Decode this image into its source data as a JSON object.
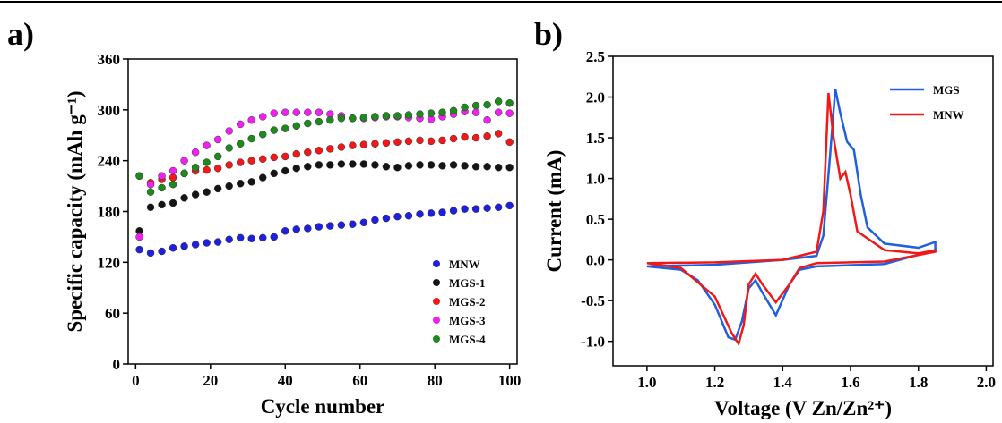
{
  "chart_data": [
    {
      "type": "scatter",
      "panel_label": "a)",
      "xlabel": "Cycle number",
      "ylabel": "Specific capacity (mAh g⁻¹)",
      "x": [
        1,
        4,
        7,
        10,
        13,
        16,
        19,
        22,
        25,
        28,
        31,
        34,
        37,
        40,
        43,
        46,
        49,
        52,
        55,
        58,
        61,
        64,
        67,
        70,
        73,
        76,
        79,
        82,
        85,
        88,
        91,
        94,
        97,
        100
      ],
      "series": [
        {
          "name": "MNW",
          "color": "#1f1fe0",
          "values": [
            135,
            131,
            133,
            137,
            139,
            141,
            143,
            144,
            147,
            149,
            148,
            149,
            150,
            157,
            159,
            160,
            162,
            163,
            164,
            165,
            167,
            170,
            172,
            174,
            175,
            177,
            178,
            179,
            181,
            183,
            183,
            184,
            185,
            187
          ]
        },
        {
          "name": "MGS-1",
          "color": "#151515",
          "values": [
            157,
            185,
            188,
            190,
            196,
            200,
            203,
            207,
            210,
            213,
            215,
            220,
            225,
            228,
            231,
            233,
            235,
            235,
            236,
            236,
            236,
            235,
            233,
            232,
            234,
            235,
            235,
            234,
            235,
            234,
            233,
            233,
            232,
            232
          ]
        },
        {
          "name": "MGS-2",
          "color": "#f01818",
          "values": [
            222,
            214,
            218,
            220,
            225,
            228,
            229,
            231,
            235,
            238,
            240,
            242,
            244,
            245,
            248,
            250,
            252,
            254,
            256,
            258,
            259,
            260,
            261,
            262,
            263,
            264,
            263,
            264,
            266,
            268,
            267,
            269,
            272,
            262
          ]
        },
        {
          "name": "MGS-3",
          "color": "#f020f0",
          "values": [
            150,
            212,
            222,
            228,
            240,
            250,
            258,
            265,
            275,
            283,
            288,
            292,
            296,
            297,
            297,
            297,
            297,
            295,
            293,
            290,
            290,
            291,
            292,
            292,
            291,
            290,
            289,
            292,
            295,
            298,
            297,
            288,
            297,
            296
          ]
        },
        {
          "name": "MGS-4",
          "color": "#1e8a1e",
          "values": [
            222,
            203,
            208,
            212,
            225,
            232,
            238,
            245,
            255,
            260,
            266,
            271,
            276,
            278,
            281,
            284,
            286,
            288,
            290,
            290,
            291,
            292,
            293,
            293,
            294,
            295,
            296,
            297,
            299,
            303,
            305,
            306,
            310,
            308
          ]
        }
      ],
      "xlim": [
        -2,
        102
      ],
      "ylim": [
        0,
        360
      ],
      "xticks": [
        0,
        20,
        40,
        60,
        80,
        100
      ],
      "yticks": [
        0,
        60,
        120,
        180,
        240,
        300,
        360
      ],
      "legend": "lower right"
    },
    {
      "type": "line",
      "panel_label": "b)",
      "xlabel": "Voltage (V Zn/Zn²⁺)",
      "ylabel": "Current (mA)",
      "series": [
        {
          "name": "MGS",
          "color": "#1f5fe0",
          "x": [
            1.0,
            1.2,
            1.4,
            1.5,
            1.52,
            1.54,
            1.555,
            1.57,
            1.59,
            1.61,
            1.63,
            1.65,
            1.7,
            1.8,
            1.85,
            1.85,
            1.7,
            1.5,
            1.45,
            1.42,
            1.38,
            1.34,
            1.32,
            1.3,
            1.28,
            1.26,
            1.24,
            1.2,
            1.15,
            1.1,
            1.0
          ],
          "values": [
            -0.08,
            -0.06,
            0.0,
            0.05,
            0.3,
            1.3,
            2.1,
            1.8,
            1.45,
            1.35,
            0.8,
            0.4,
            0.2,
            0.15,
            0.22,
            0.12,
            -0.05,
            -0.08,
            -0.12,
            -0.3,
            -0.68,
            -0.4,
            -0.25,
            -0.35,
            -0.75,
            -0.98,
            -0.95,
            -0.55,
            -0.25,
            -0.12,
            -0.08
          ]
        },
        {
          "name": "MNW",
          "color": "#f01818",
          "x": [
            1.0,
            1.2,
            1.4,
            1.5,
            1.52,
            1.535,
            1.55,
            1.57,
            1.585,
            1.6,
            1.62,
            1.7,
            1.8,
            1.85,
            1.85,
            1.7,
            1.5,
            1.45,
            1.42,
            1.38,
            1.34,
            1.32,
            1.3,
            1.285,
            1.27,
            1.25,
            1.2,
            1.1,
            1.0
          ],
          "values": [
            -0.04,
            -0.03,
            0.0,
            0.1,
            0.6,
            2.05,
            1.5,
            1.0,
            1.08,
            0.8,
            0.35,
            0.12,
            0.08,
            0.12,
            0.1,
            -0.02,
            -0.04,
            -0.1,
            -0.3,
            -0.52,
            -0.3,
            -0.17,
            -0.3,
            -0.8,
            -1.03,
            -0.9,
            -0.45,
            -0.1,
            -0.04
          ]
        }
      ],
      "xlim": [
        0.9,
        2.02
      ],
      "ylim": [
        -1.3,
        2.5
      ],
      "xticks": [
        {
          "value": 1,
          "label": "1.0"
        },
        1.2,
        1.4,
        1.6,
        1.8,
        {
          "value": 2,
          "label": "2.0"
        }
      ],
      "yticks": [
        {
          "value": -1,
          "label": "-1.0"
        },
        -0.5,
        {
          "value": 0,
          "label": "0.0"
        },
        0.5,
        {
          "value": 1,
          "label": "1.0"
        },
        1.5,
        {
          "value": 2,
          "label": "2.0"
        },
        2.5
      ],
      "legend": "upper right"
    }
  ]
}
